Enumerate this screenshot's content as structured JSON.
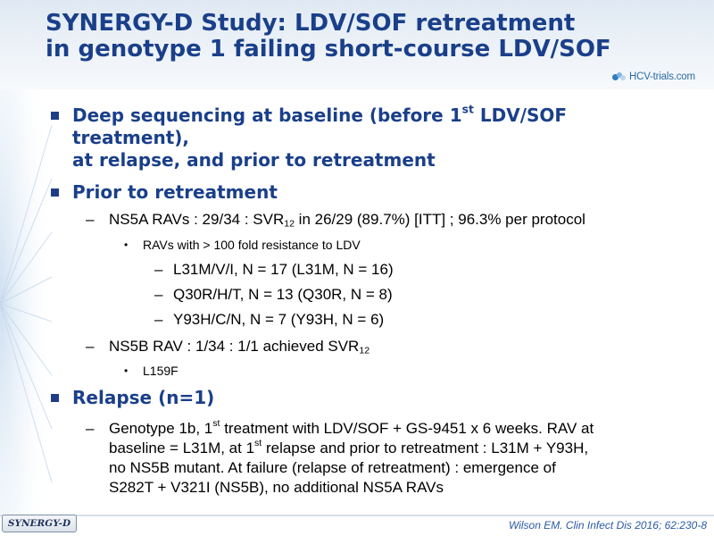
{
  "title": {
    "line1": "SYNERGY-D Study: LDV/SOF retreatment",
    "line2": "in genotype 1 failing short-course LDV/SOF"
  },
  "logo": {
    "text": "HCV-trials.com"
  },
  "bullets": {
    "deep_sequencing": {
      "part1": "Deep sequencing at baseline (before 1",
      "sup": "st",
      "part2": " LDV/SOF treatment),",
      "line2": "at relapse, and prior to retreatment"
    },
    "prior": {
      "heading": "Prior to retreatment",
      "ns5a": {
        "text1": "NS5A RAVs : 29/34 : SVR",
        "sub": "12",
        "text2": " in 26/29 (89.7%) [ITT] ; 96.3% per protocol"
      },
      "ravs_heading": "RAVs with > 100 fold resistance to LDV",
      "ravs": [
        "L31M/V/I, N = 17 (L31M, N = 16)",
        "Q30R/H/T, N = 13 (Q30R, N = 8)",
        "Y93H/C/N, N = 7 (Y93H, N = 6)"
      ],
      "ns5b": {
        "text1": "NS5B RAV : 1/34 : 1/1 achieved SVR",
        "sub": "12"
      },
      "ns5b_item": "L159F"
    },
    "relapse": {
      "heading": "Relapse (n=1)",
      "line1a": "Genotype 1b, 1",
      "line1sup": "st",
      "line1b": " treatment with LDV/SOF + GS-9451 x 6 weeks. RAV at",
      "line2a": "baseline = L31M, at 1",
      "line2sup": "st",
      "line2b": " relapse and prior to retreatment : L31M + Y93H,",
      "line3": "no NS5B mutant. At failure (relapse of retreatment) : emergence of",
      "line4": "S282T + V321I (NS5B), no additional NS5A RAVs"
    }
  },
  "markers": {
    "level1": "▪",
    "level2": "–",
    "level3": "•",
    "level4": "–"
  },
  "footer": {
    "badge": "SYNERGY-D",
    "citation": "Wilson EM. Clin Infect Dis 2016; 62:230-8"
  }
}
